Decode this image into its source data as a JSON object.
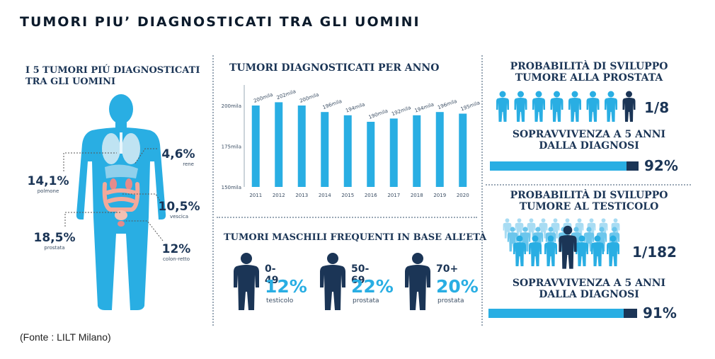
{
  "title": "TUMORI PIU’ DIAGNOSTICATI TRA GLI UOMINI",
  "source": "(Fonte : LILT Milano)",
  "left_panel": {
    "heading_line1": "I 5 TUMORI PIÚ DIAGNOSTICATI",
    "heading_line2": "TRA GLI UOMINI",
    "items": [
      {
        "pct": "14,1%",
        "label": "polmone"
      },
      {
        "pct": "4,6%",
        "label": "rene"
      },
      {
        "pct": "10,5%",
        "label": "vescica"
      },
      {
        "pct": "18,5%",
        "label": "prostata"
      },
      {
        "pct": "12%",
        "label": "colon-retto"
      }
    ],
    "colors": {
      "body": "#29aee3",
      "organ_red": "#f3a99a",
      "organ_light": "#bfe3f2"
    }
  },
  "chart_data": {
    "type": "bar",
    "title": "TUMORI DIAGNOSTICATI PER ANNO",
    "categories": [
      "2011",
      "2012",
      "2013",
      "2014",
      "2015",
      "2016",
      "2017",
      "2018",
      "2019",
      "2020"
    ],
    "values": [
      200,
      202,
      200,
      196,
      194,
      190,
      192,
      194,
      196,
      195
    ],
    "data_labels": [
      "200mila",
      "202mila",
      "200mila",
      "196mila",
      "194mila",
      "190mila",
      "192mila",
      "194mila",
      "196mila",
      "195mila"
    ],
    "y_ticks": [
      {
        "value": 150,
        "label": "150mila"
      },
      {
        "value": 175,
        "label": "175mila"
      },
      {
        "value": 200,
        "label": "200mila"
      }
    ],
    "ylim": [
      150,
      210
    ],
    "grid": false,
    "color": "#29aee3"
  },
  "age_panel": {
    "heading": "TUMORI MASCHILI FREQUENTI IN BASE ALL’ETÀ",
    "groups": [
      {
        "age": "0-49",
        "pct": "12%",
        "label": "testicolo"
      },
      {
        "age": "50-69",
        "pct": "22%",
        "label": "prostata"
      },
      {
        "age": "70+",
        "pct": "20%",
        "label": "prostata"
      }
    ]
  },
  "prostate": {
    "heading_line1": "PROBABILITÀ DI SVILUPPO",
    "heading_line2": "TUMORE ALLA PROSTATA",
    "ratio": "1/8",
    "survival_line1": "SOPRAVVIVENZA A 5 ANNI",
    "survival_line2": "DALLA DIAGNOSI",
    "survival_pct": "92%",
    "survival_value": 92
  },
  "testicle": {
    "heading_line1": "PROBABILITÀ DI SVILUPPO",
    "heading_line2": "TUMORE AL TESTICOLO",
    "ratio": "1/182",
    "survival_line1": "SOPRAVVIVENZA A 5 ANNI",
    "survival_line2": "DALLA DIAGNOSI",
    "survival_pct": "91%",
    "survival_value": 91
  },
  "colors": {
    "cyan": "#29aee3",
    "navy": "#1b3556",
    "light": "#a8dcf3"
  }
}
